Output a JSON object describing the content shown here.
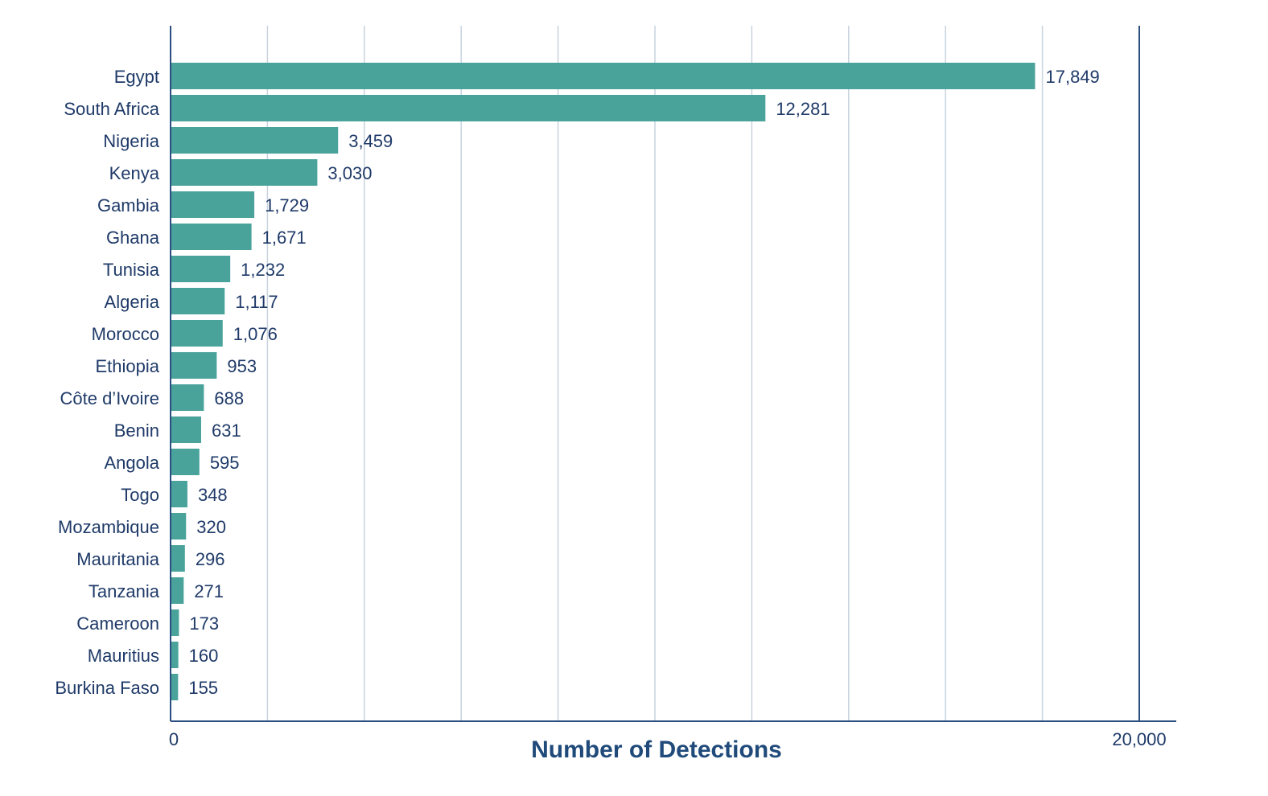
{
  "chart_data": {
    "type": "bar",
    "orientation": "horizontal",
    "categories": [
      "Egypt",
      "South Africa",
      "Nigeria",
      "Kenya",
      "Gambia",
      "Ghana",
      "Tunisia",
      "Algeria",
      "Morocco",
      "Ethiopia",
      "Côte d’Ivoire",
      "Benin",
      "Angola",
      "Togo",
      "Mozambique",
      "Mauritania",
      "Tanzania",
      "Cameroon",
      "Mauritius",
      "Burkina Faso"
    ],
    "values": [
      17849,
      12281,
      3459,
      3030,
      1729,
      1671,
      1232,
      1117,
      1076,
      953,
      688,
      631,
      595,
      348,
      320,
      296,
      271,
      173,
      160,
      155
    ],
    "value_labels": [
      "17,849",
      "12,281",
      "3,459",
      "3,030",
      "1,729",
      "1,671",
      "1,232",
      "1,117",
      "1,076",
      "953",
      "688",
      "631",
      "595",
      "348",
      "320",
      "296",
      "271",
      "173",
      "160",
      "155"
    ],
    "title": "",
    "xlabel": "Number of Detections",
    "ylabel": "",
    "xlim": [
      0,
      20000
    ],
    "x_tick_labels": [
      "0",
      "20,000"
    ],
    "grid": true,
    "bar_color": "#4aa39b",
    "text_color": "#1f3a68",
    "grid_color": "#c8d3de",
    "axis_color": "#2c4f82"
  }
}
